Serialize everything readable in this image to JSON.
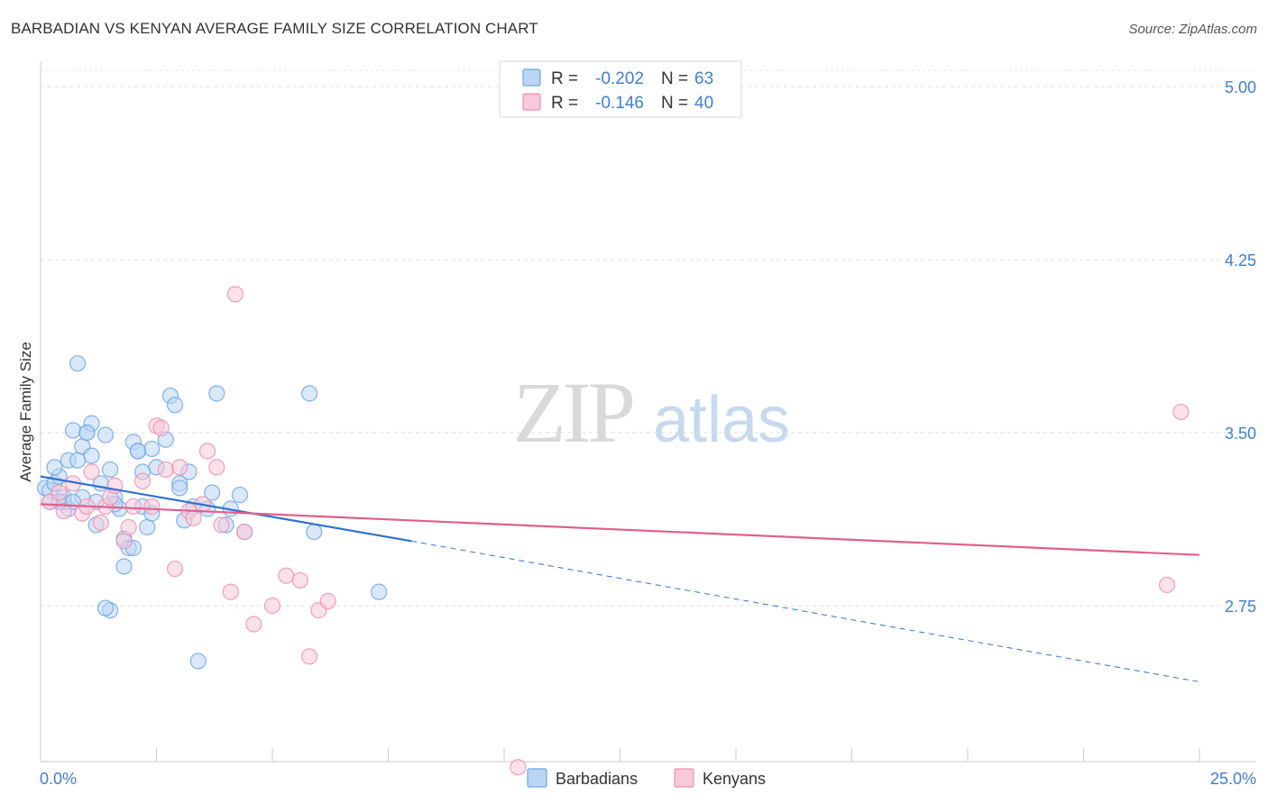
{
  "header": {
    "title": "BARBADIAN VS KENYAN AVERAGE FAMILY SIZE CORRELATION CHART",
    "source": "Source: ZipAtlas.com"
  },
  "watermark": {
    "zip": "ZIP",
    "atlas": "atlas"
  },
  "legend_top": {
    "rows": [
      {
        "r_label": "R =",
        "r_value": "-0.202",
        "n_label": "N =",
        "n_value": "63",
        "color": "#6aa6e8",
        "fill": "#bcd5f5"
      },
      {
        "r_label": "R =",
        "r_value": "-0.146",
        "n_label": "N =",
        "n_value": "40",
        "color": "#ee8fae",
        "fill": "#f8c9d8"
      }
    ]
  },
  "legend_bottom": [
    {
      "label": "Barbadians",
      "color": "#6aa6e8",
      "fill": "#bcd5f5"
    },
    {
      "label": "Kenyans",
      "color": "#ee8fae",
      "fill": "#f8c9d8"
    }
  ],
  "chart_data": {
    "type": "scatter",
    "title": "BARBADIAN VS KENYAN AVERAGE FAMILY SIZE CORRELATION CHART",
    "xlabel": "",
    "ylabel": "Average Family Size",
    "xlim": [
      0,
      25
    ],
    "ylim": [
      2.0,
      5.1
    ],
    "x_tick_labels": [
      "0.0%",
      "25.0%"
    ],
    "y_ticks": [
      2.75,
      3.5,
      4.25,
      5.0
    ],
    "y_tick_labels": [
      "2.75",
      "3.50",
      "4.25",
      "5.00"
    ],
    "grid": true,
    "legend_position": "top-center",
    "series": [
      {
        "name": "Barbadians",
        "color": "#6aa6e8",
        "fill": "#bcd5f5",
        "line_color": "#2f72d0",
        "trend": {
          "x0": 0.0,
          "y0": 3.31,
          "x1": 8.0,
          "y1": 3.03,
          "dash_to_x": 25.0,
          "dash_to_y": 2.42
        },
        "x": [
          0.1,
          0.2,
          0.3,
          0.4,
          0.5,
          0.6,
          0.6,
          0.7,
          0.8,
          0.9,
          1.0,
          1.1,
          1.1,
          1.2,
          1.3,
          1.4,
          1.5,
          1.6,
          1.7,
          1.8,
          1.9,
          2.0,
          2.1,
          2.2,
          2.3,
          2.4,
          2.5,
          2.7,
          2.8,
          2.9,
          3.0,
          3.2,
          3.3,
          3.4,
          3.6,
          3.7,
          3.8,
          4.3,
          4.4,
          4.1,
          4.0,
          5.8,
          5.9,
          7.3,
          2.0,
          1.5,
          1.0,
          0.5,
          0.3,
          0.2,
          1.2,
          0.8,
          0.4,
          1.4,
          2.4,
          3.1,
          1.6,
          0.9,
          1.8,
          2.1,
          3.0,
          2.2,
          0.7
        ],
        "y": [
          3.26,
          3.25,
          3.28,
          3.31,
          3.22,
          3.17,
          3.38,
          3.51,
          3.38,
          3.44,
          3.5,
          3.54,
          3.4,
          3.2,
          3.28,
          3.49,
          3.34,
          3.22,
          3.17,
          3.04,
          3.0,
          3.46,
          3.42,
          3.18,
          3.09,
          3.43,
          3.35,
          3.47,
          3.66,
          3.62,
          3.28,
          3.33,
          3.18,
          2.51,
          3.17,
          3.24,
          3.67,
          3.23,
          3.07,
          3.17,
          3.1,
          3.67,
          3.07,
          2.81,
          3.0,
          2.73,
          3.5,
          3.2,
          3.35,
          3.2,
          3.1,
          3.8,
          3.2,
          2.74,
          3.15,
          3.12,
          3.19,
          3.22,
          2.92,
          3.42,
          3.26,
          3.33,
          3.2
        ]
      },
      {
        "name": "Kenyans",
        "color": "#ee8fae",
        "fill": "#f8c9d8",
        "line_color": "#e0608a",
        "trend": {
          "x0": 0.0,
          "y0": 3.19,
          "x1": 25.0,
          "y1": 2.97
        },
        "x": [
          0.2,
          0.4,
          0.5,
          0.7,
          0.9,
          1.0,
          1.1,
          1.3,
          1.4,
          1.5,
          1.6,
          1.8,
          1.9,
          2.0,
          2.2,
          2.4,
          2.5,
          2.6,
          2.7,
          2.9,
          3.0,
          3.2,
          3.3,
          3.5,
          3.6,
          3.8,
          3.9,
          4.1,
          4.2,
          4.4,
          4.6,
          5.0,
          5.3,
          5.6,
          5.8,
          6.0,
          6.2,
          10.3,
          24.3,
          24.6
        ],
        "y": [
          3.2,
          3.24,
          3.16,
          3.28,
          3.15,
          3.18,
          3.33,
          3.11,
          3.18,
          3.22,
          3.27,
          3.03,
          3.09,
          3.18,
          3.29,
          3.18,
          3.53,
          3.52,
          3.34,
          2.91,
          3.35,
          3.16,
          3.13,
          3.19,
          3.42,
          3.35,
          3.1,
          2.81,
          4.1,
          3.07,
          2.67,
          2.75,
          2.88,
          2.86,
          2.53,
          2.73,
          2.77,
          2.05,
          2.84,
          3.59
        ]
      }
    ]
  }
}
